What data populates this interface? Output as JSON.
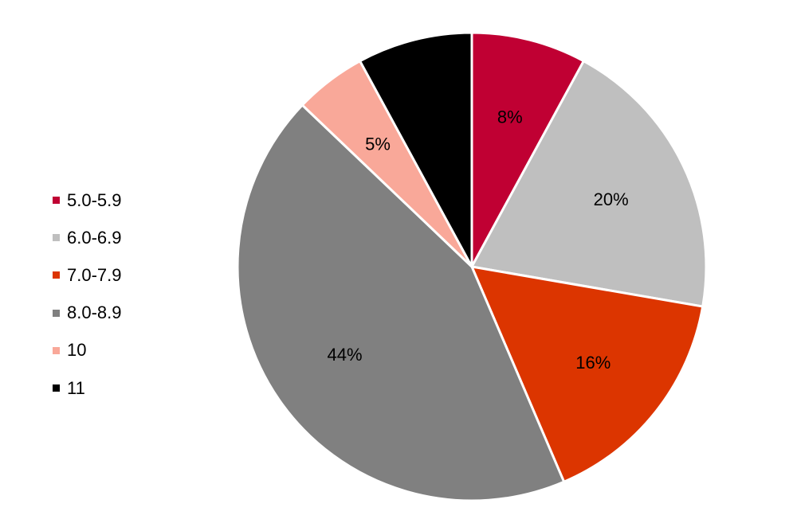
{
  "chart_data": {
    "type": "pie",
    "title": "",
    "legend_position": "left",
    "slices": [
      {
        "name": "5.0-5.9",
        "value": 8,
        "label": "8%",
        "color": "#C00033"
      },
      {
        "name": "6.0-6.9",
        "value": 20,
        "label": "20%",
        "color": "#BFBFBF"
      },
      {
        "name": "7.0-7.9",
        "value": 16,
        "label": "16%",
        "color": "#DC3500"
      },
      {
        "name": "8.0-8.9",
        "value": 44,
        "label": "44%",
        "color": "#808080"
      },
      {
        "name": "10",
        "value": 5,
        "label": "5%",
        "color": "#F9A899"
      },
      {
        "name": "11",
        "value": 8,
        "label": "",
        "color": "#000000"
      }
    ]
  }
}
